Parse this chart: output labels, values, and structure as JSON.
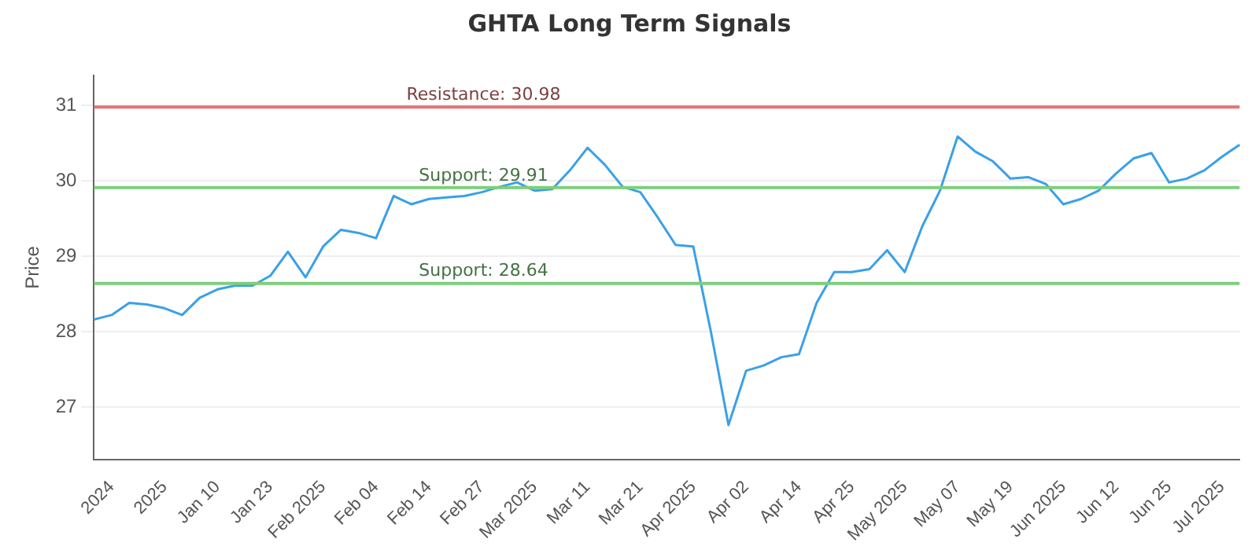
{
  "chart_data": {
    "type": "line",
    "title": "GHTA Long Term Signals",
    "ylabel": "Price",
    "categories": [
      null,
      "2024",
      null,
      null,
      "2025",
      null,
      null,
      "Jan 10",
      null,
      null,
      "Jan 23",
      null,
      null,
      "Feb 2025",
      null,
      null,
      "Feb 04",
      null,
      null,
      "Feb 14",
      null,
      null,
      "Feb 27",
      null,
      null,
      "Mar 2025",
      null,
      null,
      "Mar 11",
      null,
      null,
      "Mar 21",
      null,
      null,
      "Apr 2025",
      null,
      null,
      "Apr 02",
      null,
      null,
      "Apr 14",
      null,
      null,
      "Apr 25",
      null,
      null,
      "May 2025",
      null,
      null,
      "May 07",
      null,
      null,
      "May 19",
      null,
      null,
      "Jun 2025",
      null,
      null,
      "Jun 12",
      null,
      null,
      "Jun 25",
      null,
      null,
      "Jul 2025",
      null
    ],
    "series": [
      {
        "color": "#3aa0e8",
        "values": [
          28.16,
          28.22,
          28.38,
          28.36,
          28.31,
          28.22,
          28.45,
          28.56,
          28.61,
          28.61,
          28.74,
          29.06,
          28.72,
          29.13,
          29.35,
          29.31,
          29.24,
          29.8,
          29.69,
          29.76,
          29.78,
          29.8,
          29.85,
          29.92,
          29.98,
          29.87,
          29.89,
          30.14,
          30.44,
          30.21,
          29.92,
          29.85,
          29.51,
          29.15,
          29.13,
          28.0,
          26.76,
          27.48,
          27.55,
          27.66,
          27.7,
          28.38,
          28.79,
          28.79,
          28.83,
          29.08,
          28.79,
          29.4,
          29.87,
          30.59,
          30.39,
          30.26,
          30.03,
          30.05,
          29.96,
          29.69,
          29.76,
          29.87,
          30.1,
          30.3,
          30.37,
          29.98,
          30.03,
          30.14,
          30.32,
          30.48
        ]
      }
    ],
    "ylim": [
      26.3,
      31.4
    ],
    "yticks": [
      27,
      28,
      29,
      30,
      31
    ],
    "grid": "y",
    "legend": false,
    "marker": "none",
    "line_style": "solid",
    "ref_lines": [
      {
        "axis": "y",
        "value": 30.98,
        "label": "Resistance: 30.98",
        "color": "#e57373"
      },
      {
        "axis": "y",
        "value": 29.91,
        "label": "Support: 29.91",
        "color": "#7ccf7c"
      },
      {
        "axis": "y",
        "value": 28.64,
        "label": "Support: 28.64",
        "color": "#7ccf7c"
      }
    ]
  }
}
